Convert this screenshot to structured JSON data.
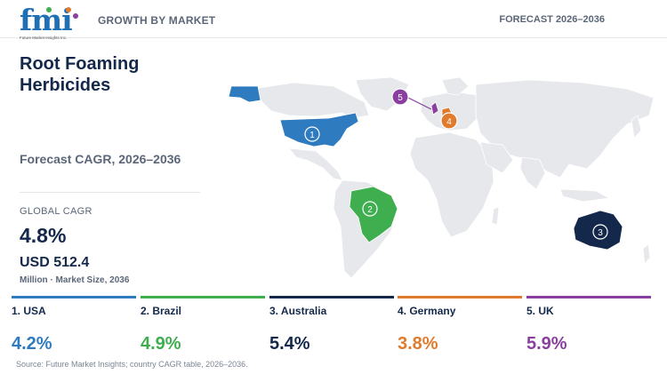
{
  "header": {
    "logo_text": "fmi",
    "logo_sub": "Future Market Insights Inc.",
    "left_label": "GROWTH BY MARKET",
    "right_label": "FORECAST 2026–2036"
  },
  "title": "Root Foaming Herbicides",
  "subtitle": "Forecast CAGR, 2026–2036",
  "global": {
    "label": "GLOBAL CAGR",
    "cagr": "4.8%",
    "market_size": "USD 512.4",
    "market_unit": "Million · Market Size, 2036"
  },
  "countries": [
    {
      "rank": "1",
      "label": "1. USA",
      "cagr": "4.2%",
      "color": "#2f7bbf"
    },
    {
      "rank": "2",
      "label": "2. Brazil",
      "cagr": "4.9%",
      "color": "#3fae4f"
    },
    {
      "rank": "3",
      "label": "3. Australia",
      "cagr": "5.4%",
      "color": "#13284a"
    },
    {
      "rank": "4",
      "label": "4. Germany",
      "cagr": "3.8%",
      "color": "#e07b2e"
    },
    {
      "rank": "5",
      "label": "5. UK",
      "cagr": "5.9%",
      "color": "#8a3fa0"
    }
  ],
  "map_colors": {
    "land": "#e6e8eb",
    "border": "#ffffff"
  },
  "source": "Source: Future Market Insights; country CAGR table, 2026–2036."
}
